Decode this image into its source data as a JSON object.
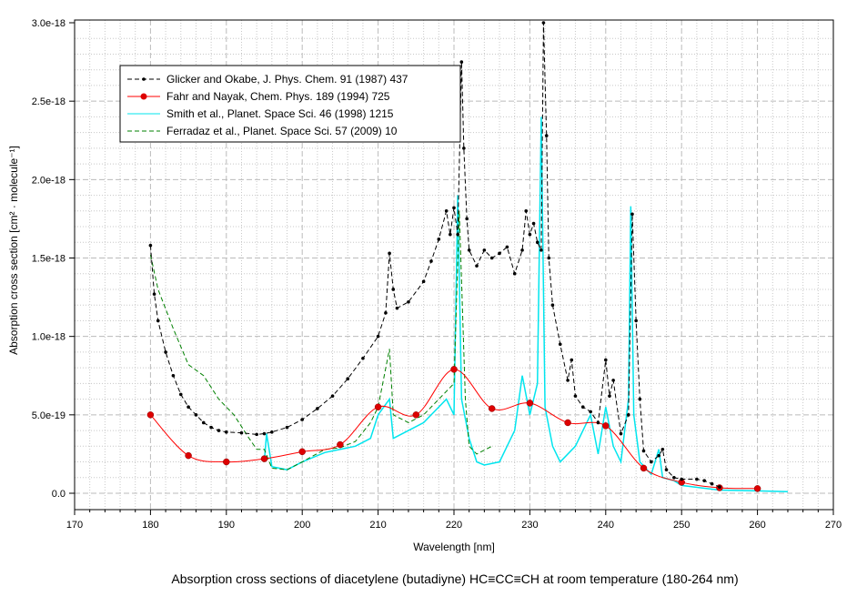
{
  "chart_data": {
    "type": "line",
    "title": "Absorption cross sections of diacetylene (butadiyne) HC≡CC≡CH at room temperature (180-264 nm)",
    "xlabel": "Wavelength [nm]",
    "ylabel": "Absorption cross section [cm² · molecule⁻¹]",
    "xlim": [
      170,
      270
    ],
    "ylim": [
      -1e-19,
      3e-18
    ],
    "xticks": [
      170,
      180,
      190,
      200,
      210,
      220,
      230,
      240,
      250,
      260,
      270
    ],
    "xtick_labels": [
      "170",
      "180",
      "190",
      "200",
      "210",
      "220",
      "230",
      "240",
      "250",
      "260",
      "270"
    ],
    "yticks": [
      0,
      5e-19,
      1e-18,
      1.5e-18,
      2e-18,
      2.5e-18,
      3e-18
    ],
    "ytick_labels": [
      "0.0",
      "5.0e-19",
      "1.0e-18",
      "1.5e-18",
      "2.0e-18",
      "2.5e-18",
      "3.0e-18"
    ],
    "grid": true,
    "legend_position": "top-left",
    "y_unit_multiplier": 1e-18,
    "series": [
      {
        "name": "Glicker and Okabe, J. Phys. Chem. 91 (1987) 437",
        "color": "#000000",
        "style": "dashed-markers",
        "x": [
          180,
          180.5,
          181,
          182,
          183,
          184,
          185,
          186,
          187,
          188,
          189,
          190,
          192,
          194,
          195,
          196,
          198,
          200,
          202,
          204,
          206,
          208,
          210,
          211,
          211.5,
          212,
          212.5,
          214,
          216,
          217,
          218,
          219,
          219.5,
          220,
          220.5,
          221,
          221.3,
          221.7,
          222,
          223,
          224,
          225,
          226,
          227,
          228,
          229,
          229.5,
          230,
          230.5,
          231,
          231.5,
          231.8,
          232.2,
          232.5,
          233,
          234,
          235,
          235.5,
          236,
          237,
          238,
          239,
          240,
          240.5,
          241,
          242,
          243,
          243.5,
          244,
          244.5,
          245,
          246,
          247,
          247.5,
          248,
          249,
          250,
          252,
          253,
          254,
          255
        ],
        "y": [
          1.58,
          1.27,
          1.1,
          0.9,
          0.75,
          0.63,
          0.55,
          0.5,
          0.45,
          0.42,
          0.4,
          0.39,
          0.385,
          0.375,
          0.38,
          0.39,
          0.42,
          0.47,
          0.54,
          0.62,
          0.73,
          0.86,
          1.0,
          1.15,
          1.53,
          1.3,
          1.18,
          1.22,
          1.35,
          1.48,
          1.62,
          1.8,
          1.65,
          1.82,
          1.65,
          2.75,
          2.2,
          1.75,
          1.55,
          1.45,
          1.55,
          1.5,
          1.53,
          1.57,
          1.4,
          1.55,
          1.8,
          1.65,
          1.72,
          1.6,
          1.55,
          3.0,
          2.28,
          1.5,
          1.2,
          0.95,
          0.72,
          0.85,
          0.62,
          0.55,
          0.52,
          0.45,
          0.85,
          0.62,
          0.72,
          0.38,
          0.5,
          1.78,
          1.1,
          0.6,
          0.27,
          0.2,
          0.24,
          0.28,
          0.15,
          0.1,
          0.09,
          0.09,
          0.08,
          0.06,
          0.04
        ]
      },
      {
        "name": "Fahr and Nayak, Chem. Phys. 189 (1994) 725",
        "color": "#ff0000",
        "marker_color": "#dd0000",
        "style": "smooth-markers",
        "x": [
          180,
          185,
          190,
          195,
          200,
          205,
          210,
          215,
          220,
          225,
          230,
          235,
          240,
          245,
          250,
          255,
          260
        ],
        "y": [
          0.5,
          0.24,
          0.2,
          0.22,
          0.265,
          0.31,
          0.55,
          0.5,
          0.79,
          0.54,
          0.575,
          0.45,
          0.43,
          0.16,
          0.07,
          0.035,
          0.03
        ]
      },
      {
        "name": "Smith et al., Planet. Space Sci. 46 (1998) 1215",
        "color": "#00e5ee",
        "style": "solid",
        "x": [
          195,
          195.3,
          196,
          198,
          200,
          203,
          205,
          207,
          209,
          210,
          211.5,
          212,
          214,
          216,
          218,
          219,
          220,
          220.5,
          221,
          222,
          223,
          224,
          226,
          228,
          229,
          230,
          231,
          231.5,
          232,
          233,
          234,
          236,
          238,
          239,
          240,
          241,
          242,
          243,
          243.3,
          243.7,
          244.5,
          246,
          247,
          247.5,
          249,
          250,
          255,
          260,
          264
        ],
        "y": [
          0.2,
          0.38,
          0.17,
          0.15,
          0.2,
          0.26,
          0.28,
          0.3,
          0.35,
          0.5,
          0.6,
          0.35,
          0.4,
          0.45,
          0.55,
          0.6,
          0.5,
          1.9,
          0.6,
          0.35,
          0.2,
          0.18,
          0.2,
          0.4,
          0.75,
          0.5,
          0.7,
          2.4,
          0.55,
          0.3,
          0.2,
          0.3,
          0.5,
          0.25,
          0.55,
          0.3,
          0.2,
          0.6,
          1.83,
          0.5,
          0.2,
          0.12,
          0.28,
          0.1,
          0.08,
          0.05,
          0.02,
          0.015,
          0.01
        ]
      },
      {
        "name": "Ferradaz et al., Planet. Space Sci. 57 (2009) 10",
        "color": "#008000",
        "style": "dashed",
        "x": [
          180,
          181,
          183,
          185,
          187,
          189,
          191,
          193,
          194,
          195,
          196,
          198,
          200,
          203,
          205,
          207,
          209,
          210,
          211.5,
          212,
          214,
          216,
          218,
          220,
          220.7,
          221.5,
          222,
          223,
          225
        ],
        "y": [
          1.52,
          1.3,
          1.05,
          0.82,
          0.75,
          0.6,
          0.5,
          0.35,
          0.28,
          0.28,
          0.16,
          0.15,
          0.2,
          0.28,
          0.29,
          0.33,
          0.45,
          0.55,
          0.92,
          0.5,
          0.45,
          0.5,
          0.6,
          0.7,
          1.8,
          0.6,
          0.3,
          0.25,
          0.3
        ]
      }
    ]
  }
}
